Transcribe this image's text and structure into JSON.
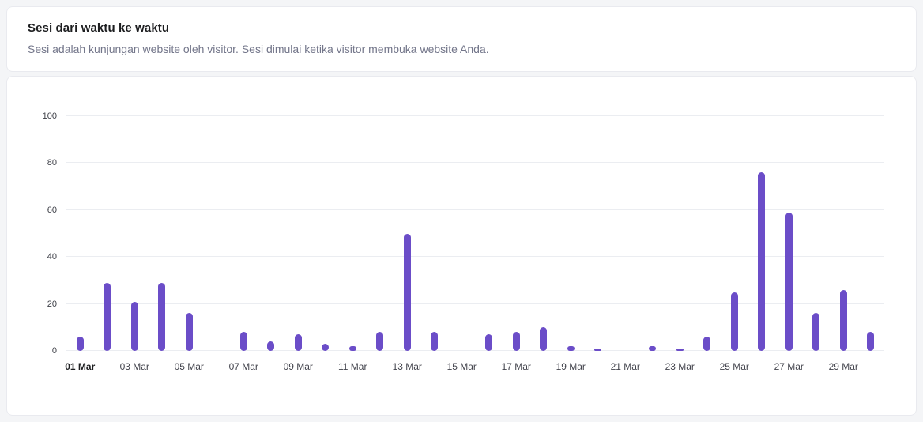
{
  "header": {
    "title": "Sesi dari waktu ke waktu",
    "subtitle": "Sesi adalah kunjungan website oleh visitor. Sesi dimulai ketika visitor membuka website Anda."
  },
  "chart_data": {
    "type": "bar",
    "title": "Sesi dari waktu ke waktu",
    "categories": [
      "01 Mar",
      "02 Mar",
      "03 Mar",
      "04 Mar",
      "05 Mar",
      "06 Mar",
      "07 Mar",
      "08 Mar",
      "09 Mar",
      "10 Mar",
      "11 Mar",
      "12 Mar",
      "13 Mar",
      "14 Mar",
      "15 Mar",
      "16 Mar",
      "17 Mar",
      "18 Mar",
      "19 Mar",
      "20 Mar",
      "21 Mar",
      "22 Mar",
      "23 Mar",
      "24 Mar",
      "25 Mar",
      "26 Mar",
      "27 Mar",
      "28 Mar",
      "29 Mar",
      "30 Mar"
    ],
    "values": [
      6,
      29,
      21,
      29,
      16,
      0,
      8,
      4,
      7,
      3,
      2,
      8,
      50,
      8,
      0,
      7,
      8,
      10,
      2,
      1,
      0,
      2,
      1,
      6,
      25,
      76,
      59,
      16,
      26,
      8
    ],
    "x_tick_labels": [
      "01 Mar",
      "03 Mar",
      "05 Mar",
      "07 Mar",
      "09 Mar",
      "11 Mar",
      "13 Mar",
      "15 Mar",
      "17 Mar",
      "19 Mar",
      "21 Mar",
      "23 Mar",
      "25 Mar",
      "27 Mar",
      "29 Mar"
    ],
    "xlabel": "",
    "ylabel": "",
    "ylim": [
      0,
      100
    ],
    "y_ticks": [
      0,
      20,
      40,
      60,
      80,
      100
    ],
    "bar_color": "#6b4dc8",
    "grid": true,
    "legend": "none"
  }
}
